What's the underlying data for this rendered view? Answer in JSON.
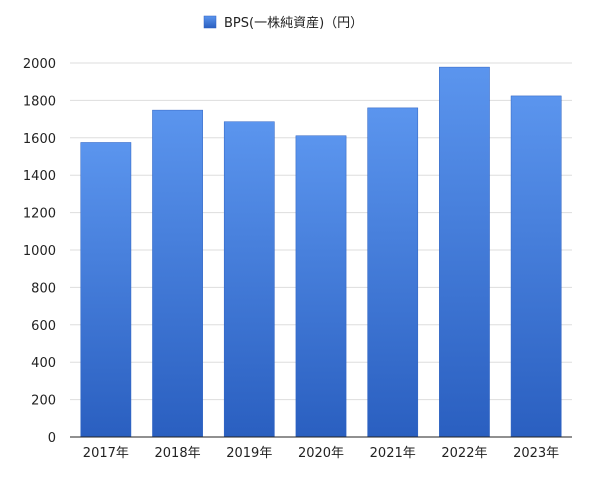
{
  "chart_data": {
    "type": "bar",
    "categories": [
      "2017年",
      "2018年",
      "2019年",
      "2020年",
      "2021年",
      "2022年",
      "2023年"
    ],
    "series": [
      {
        "name": "BPS(一株純資産)（円）",
        "values": [
          1575,
          1748,
          1686,
          1611,
          1760,
          1978,
          1824
        ]
      }
    ],
    "ylim": [
      0,
      2000
    ],
    "yticks": [
      0,
      200,
      400,
      600,
      800,
      1000,
      1200,
      1400,
      1600,
      1800,
      2000
    ],
    "grid": true,
    "legend_position": "top-center",
    "colors": {
      "bar_top": "#5b95ee",
      "bar_bottom": "#2a5fc0",
      "grid": "#dddddd",
      "axis": "#222222"
    }
  }
}
